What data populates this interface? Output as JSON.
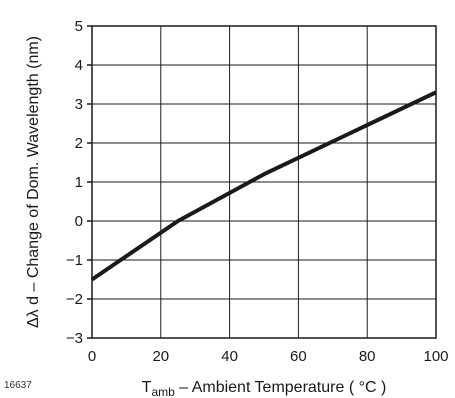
{
  "figure_id": "16637",
  "chart_data": {
    "type": "line",
    "title": "",
    "xlabel": {
      "main": "T",
      "sub": "amb",
      "rest": " – Ambient Temperature ( °C )"
    },
    "ylabel": "Δλ d – Change of Dom. Wavelength (nm)",
    "xlim": [
      0,
      100
    ],
    "ylim": [
      -3,
      5
    ],
    "xticks": [
      0,
      20,
      40,
      60,
      80,
      100
    ],
    "yticks": [
      -3,
      -2,
      -1,
      0,
      1,
      2,
      3,
      4,
      5
    ],
    "xtick_labels": [
      "0",
      "20",
      "40",
      "60",
      "80",
      "100"
    ],
    "ytick_labels": [
      "−3",
      "−2",
      "−1",
      "0",
      "1",
      "2",
      "3",
      "4",
      "5"
    ],
    "grid": true,
    "legend": "none",
    "series": [
      {
        "x": [
          0,
          25,
          50,
          75,
          100
        ],
        "y": [
          -1.5,
          0.0,
          1.2,
          2.25,
          3.3
        ]
      }
    ],
    "colors": {
      "line": "#1a1a1a",
      "grid": "#1a1a1a",
      "frame": "#1a1a1a"
    }
  }
}
